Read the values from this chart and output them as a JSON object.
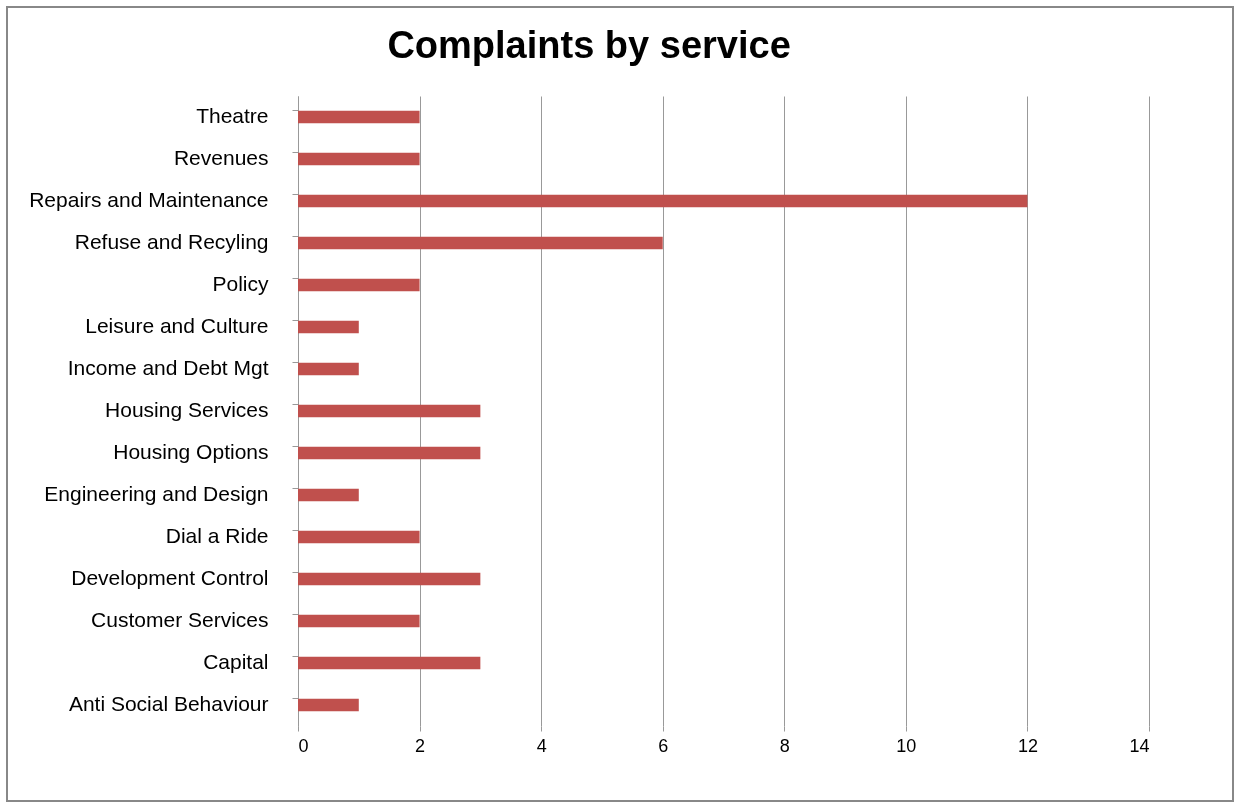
{
  "chart_data": {
    "type": "bar",
    "orientation": "horizontal",
    "title": "Complaints by service",
    "categories": [
      "Theatre",
      "Revenues",
      "Repairs and Maintenance",
      "Refuse and Recyling",
      "Policy",
      "Leisure and Culture",
      "Income and Debt Mgt",
      "Housing Services",
      "Housing Options",
      "Engineering and Design",
      "Dial a Ride",
      "Development Control",
      "Customer Services",
      "Capital",
      "Anti Social Behaviour"
    ],
    "values": [
      2,
      2,
      12,
      6,
      2,
      1,
      1,
      3,
      3,
      1,
      2,
      3,
      2,
      3,
      1
    ],
    "color": "#c0504d",
    "xlim": [
      0,
      14
    ],
    "xticks": [
      0,
      2,
      4,
      6,
      8,
      10,
      12,
      14
    ],
    "grid": "x"
  }
}
